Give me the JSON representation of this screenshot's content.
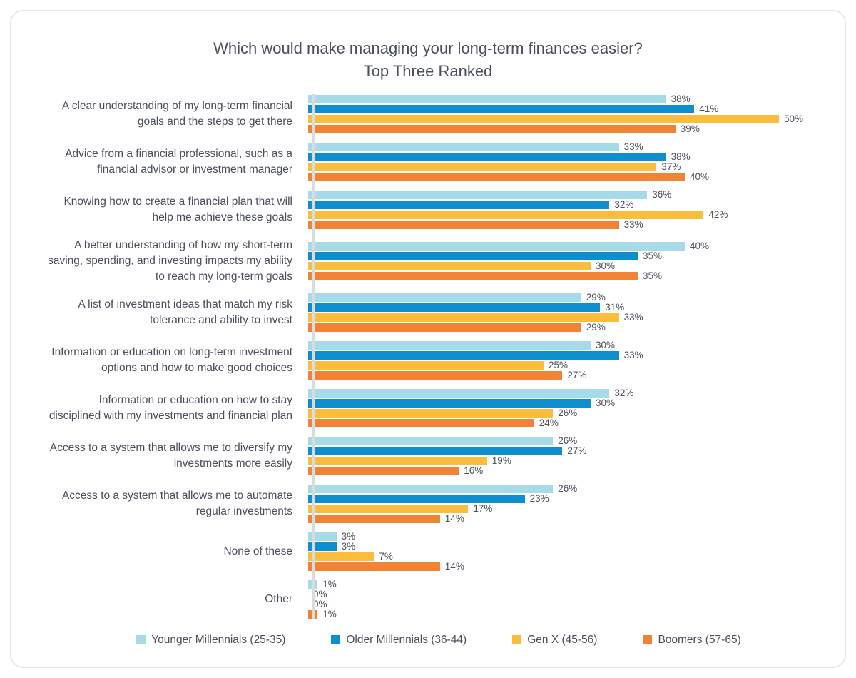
{
  "title": {
    "line1": "Which would make managing your long-term finances easier?",
    "line2": "Top Three Ranked"
  },
  "chart_data": {
    "type": "bar",
    "orientation": "horizontal",
    "value_suffix": "%",
    "xlim": [
      0,
      52
    ],
    "grid": false,
    "legend_position": "bottom",
    "text_color": "#4a505c",
    "axis_color": "#d8dcdf",
    "categories": [
      "A clear understanding of my long-term financial goals and the steps to get there",
      "Advice from a financial professional, such as a financial advisor or investment manager",
      "Knowing how to create a financial plan that will help me achieve these goals",
      "A better understanding of how my short-term saving, spending, and investing impacts my ability to reach my long-term goals",
      "A list of investment ideas that match my risk tolerance and ability to invest",
      "Information or education on long-term investment options and how to make good choices",
      "Information or education on how to stay disciplined with my investments and financial plan",
      "Access to a system that allows me to diversify my investments more easily",
      "Access to a system that allows me to automate regular investments",
      "None of these",
      "Other"
    ],
    "series": [
      {
        "name": "Younger Millennials (25-35)",
        "color": "#a7dbe8",
        "values": [
          38,
          33,
          36,
          40,
          29,
          30,
          32,
          26,
          26,
          3,
          1
        ]
      },
      {
        "name": "Older Millennials (36-44)",
        "color": "#0d8ecf",
        "values": [
          41,
          38,
          32,
          35,
          31,
          33,
          30,
          27,
          23,
          3,
          0
        ]
      },
      {
        "name": "Gen X (45-56)",
        "color": "#fcbd3c",
        "values": [
          50,
          37,
          42,
          30,
          33,
          25,
          26,
          19,
          17,
          7,
          0
        ]
      },
      {
        "name": "Boomers (57-65)",
        "color": "#f28334",
        "values": [
          39,
          40,
          33,
          35,
          29,
          27,
          24,
          16,
          14,
          14,
          1
        ]
      }
    ]
  }
}
